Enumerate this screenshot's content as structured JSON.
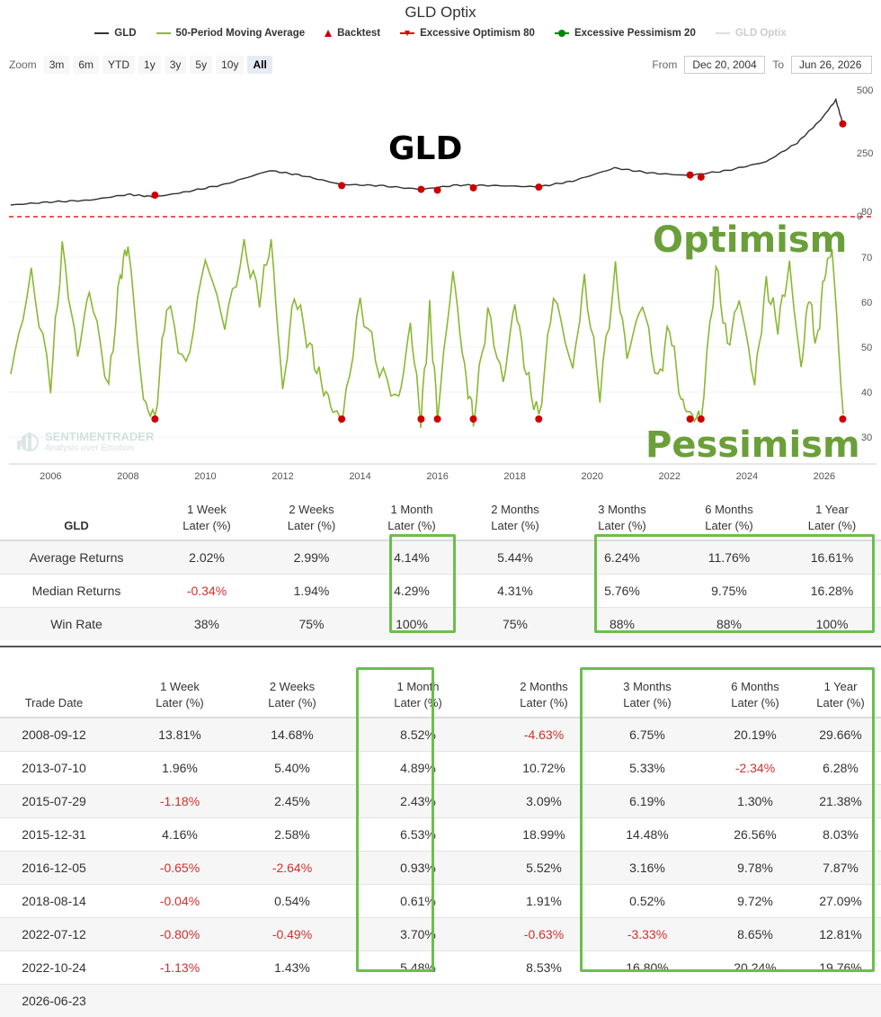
{
  "title": "GLD Optix",
  "legend": [
    {
      "label": "GLD",
      "color": "#333333",
      "kind": "line"
    },
    {
      "label": "50-Period Moving Average",
      "color": "#8ab833",
      "kind": "line"
    },
    {
      "label": "Backtest",
      "color": "#cc0000",
      "kind": "triangle"
    },
    {
      "label": "Excessive Optimism 80",
      "color": "#dd0000",
      "kind": "dash"
    },
    {
      "label": "Excessive Pessimism 20",
      "color": "#008800",
      "kind": "dot"
    },
    {
      "label": "GLD Optix",
      "color": "#cccccc",
      "kind": "faded"
    }
  ],
  "zoom": {
    "label": "Zoom",
    "buttons": [
      "3m",
      "6m",
      "YTD",
      "1y",
      "3y",
      "5y",
      "10y",
      "All"
    ],
    "active": "All"
  },
  "range": {
    "from_label": "From",
    "from": "Dec 20, 2004",
    "to_label": "To",
    "to": "Jun 26, 2026"
  },
  "annotations": {
    "gld": "GLD",
    "optimism": "Optimism",
    "pessimism": "Pessimism"
  },
  "watermark": {
    "line1": "SENTIMENTRADER",
    "line2": "Analysis over Emotion"
  },
  "chart_data": [
    {
      "type": "line",
      "name": "GLD",
      "color": "#333333",
      "x_ticks": [
        "2006",
        "2008",
        "2010",
        "2012",
        "2014",
        "2016",
        "2018",
        "2020",
        "2022",
        "2024",
        "2026"
      ],
      "y_ticks": [
        0,
        250,
        500
      ],
      "x": [
        2004.97,
        2006.0,
        2007.0,
        2008.0,
        2008.7,
        2009.5,
        2010.5,
        2011.67,
        2012.5,
        2013.5,
        2014.5,
        2015.58,
        2016.5,
        2017.5,
        2018.62,
        2019.5,
        2020.58,
        2021.5,
        2022.5,
        2023.5,
        2024.5,
        2025.3,
        2025.9,
        2026.3,
        2026.49
      ],
      "y": [
        43,
        55,
        62,
        85,
        75,
        95,
        125,
        180,
        160,
        125,
        120,
        105,
        122,
        120,
        115,
        138,
        190,
        170,
        160,
        180,
        215,
        290,
        380,
        460,
        360
      ],
      "backtest_markers": [
        {
          "date": "2008-09-12",
          "value": 82
        },
        {
          "date": "2013-07-10",
          "value": 120
        },
        {
          "date": "2015-07-29",
          "value": 105
        },
        {
          "date": "2015-12-31",
          "value": 102
        },
        {
          "date": "2016-12-05",
          "value": 111
        },
        {
          "date": "2018-08-14",
          "value": 114
        },
        {
          "date": "2022-07-12",
          "value": 162
        },
        {
          "date": "2022-10-24",
          "value": 154
        },
        {
          "date": "2026-06-23",
          "value": 365
        }
      ]
    },
    {
      "type": "line",
      "name": "GLD Optix",
      "color": "#8ab833",
      "y_ticks": [
        30,
        40,
        50,
        60,
        70,
        80
      ],
      "ylim": [
        27,
        80
      ],
      "x": [
        2004.97,
        2005.5,
        2006.0,
        2006.3,
        2006.7,
        2007.0,
        2007.5,
        2007.8,
        2008.0,
        2008.4,
        2008.7,
        2009.0,
        2009.5,
        2010.0,
        2010.5,
        2011.0,
        2011.4,
        2011.7,
        2012.0,
        2012.3,
        2012.7,
        2013.0,
        2013.3,
        2013.55,
        2014.0,
        2014.5,
        2015.0,
        2015.3,
        2015.57,
        2015.8,
        2016.0,
        2016.4,
        2016.7,
        2016.93,
        2017.3,
        2017.7,
        2018.0,
        2018.3,
        2018.62,
        2019.0,
        2019.5,
        2019.8,
        2020.2,
        2020.6,
        2020.9,
        2021.3,
        2021.7,
        2022.0,
        2022.3,
        2022.53,
        2022.81,
        2023.2,
        2023.5,
        2023.8,
        2024.2,
        2024.5,
        2024.8,
        2025.1,
        2025.4,
        2025.6,
        2025.8,
        2026.0,
        2026.2,
        2026.49
      ],
      "y": [
        44,
        66,
        42,
        72,
        48,
        63,
        41,
        66,
        73,
        38,
        34,
        60,
        45,
        70,
        55,
        72,
        61,
        74,
        40,
        62,
        50,
        42,
        36,
        34,
        60,
        45,
        38,
        55,
        34,
        58,
        35,
        67,
        45,
        34,
        58,
        42,
        60,
        44,
        34,
        62,
        45,
        65,
        40,
        67,
        48,
        60,
        42,
        55,
        38,
        35,
        34,
        68,
        50,
        61,
        42,
        64,
        55,
        68,
        45,
        62,
        50,
        66,
        72,
        35
      ]
    }
  ],
  "summary_table": {
    "row_header": "GLD",
    "columns": [
      {
        "l1": "1 Week",
        "l2": "Later (%)"
      },
      {
        "l1": "2 Weeks",
        "l2": "Later (%)"
      },
      {
        "l1": "1 Month",
        "l2": "Later (%)"
      },
      {
        "l1": "2 Months",
        "l2": "Later (%)"
      },
      {
        "l1": "3 Months",
        "l2": "Later (%)"
      },
      {
        "l1": "6 Months",
        "l2": "Later (%)"
      },
      {
        "l1": "1 Year",
        "l2": "Later (%)"
      }
    ],
    "rows": [
      {
        "label": "Average Returns",
        "values": [
          "2.02%",
          "2.99%",
          "4.14%",
          "5.44%",
          "6.24%",
          "11.76%",
          "16.61%"
        ]
      },
      {
        "label": "Median Returns",
        "values": [
          "-0.34%",
          "1.94%",
          "4.29%",
          "4.31%",
          "5.76%",
          "9.75%",
          "16.28%"
        ]
      },
      {
        "label": "Win Rate",
        "values": [
          "38%",
          "75%",
          "100%",
          "75%",
          "88%",
          "88%",
          "100%"
        ]
      }
    ]
  },
  "trade_table": {
    "date_header": "Trade Date",
    "columns": [
      {
        "l1": "1 Week",
        "l2": "Later (%)"
      },
      {
        "l1": "2 Weeks",
        "l2": "Later (%)"
      },
      {
        "l1": "1 Month",
        "l2": "Later (%)"
      },
      {
        "l1": "2 Months",
        "l2": "Later (%)"
      },
      {
        "l1": "3 Months",
        "l2": "Later (%)"
      },
      {
        "l1": "6 Months",
        "l2": "Later (%)"
      },
      {
        "l1": "1 Year",
        "l2": "Later (%)"
      }
    ],
    "rows": [
      {
        "date": "2008-09-12",
        "values": [
          "13.81%",
          "14.68%",
          "8.52%",
          "-4.63%",
          "6.75%",
          "20.19%",
          "29.66%"
        ]
      },
      {
        "date": "2013-07-10",
        "values": [
          "1.96%",
          "5.40%",
          "4.89%",
          "10.72%",
          "5.33%",
          "-2.34%",
          "6.28%"
        ]
      },
      {
        "date": "2015-07-29",
        "values": [
          "-1.18%",
          "2.45%",
          "2.43%",
          "3.09%",
          "6.19%",
          "1.30%",
          "21.38%"
        ]
      },
      {
        "date": "2015-12-31",
        "values": [
          "4.16%",
          "2.58%",
          "6.53%",
          "18.99%",
          "14.48%",
          "26.56%",
          "8.03%"
        ]
      },
      {
        "date": "2016-12-05",
        "values": [
          "-0.65%",
          "-2.64%",
          "0.93%",
          "5.52%",
          "3.16%",
          "9.78%",
          "7.87%"
        ]
      },
      {
        "date": "2018-08-14",
        "values": [
          "-0.04%",
          "0.54%",
          "0.61%",
          "1.91%",
          "0.52%",
          "9.72%",
          "27.09%"
        ]
      },
      {
        "date": "2022-07-12",
        "values": [
          "-0.80%",
          "-0.49%",
          "3.70%",
          "-0.63%",
          "-3.33%",
          "8.65%",
          "12.81%"
        ]
      },
      {
        "date": "2022-10-24",
        "values": [
          "-1.13%",
          "1.43%",
          "5.48%",
          "8.53%",
          "16.80%",
          "20.24%",
          "19.76%"
        ]
      },
      {
        "date": "2026-06-23",
        "values": [
          "",
          "",
          "",
          "",
          "",
          "",
          ""
        ]
      }
    ]
  }
}
